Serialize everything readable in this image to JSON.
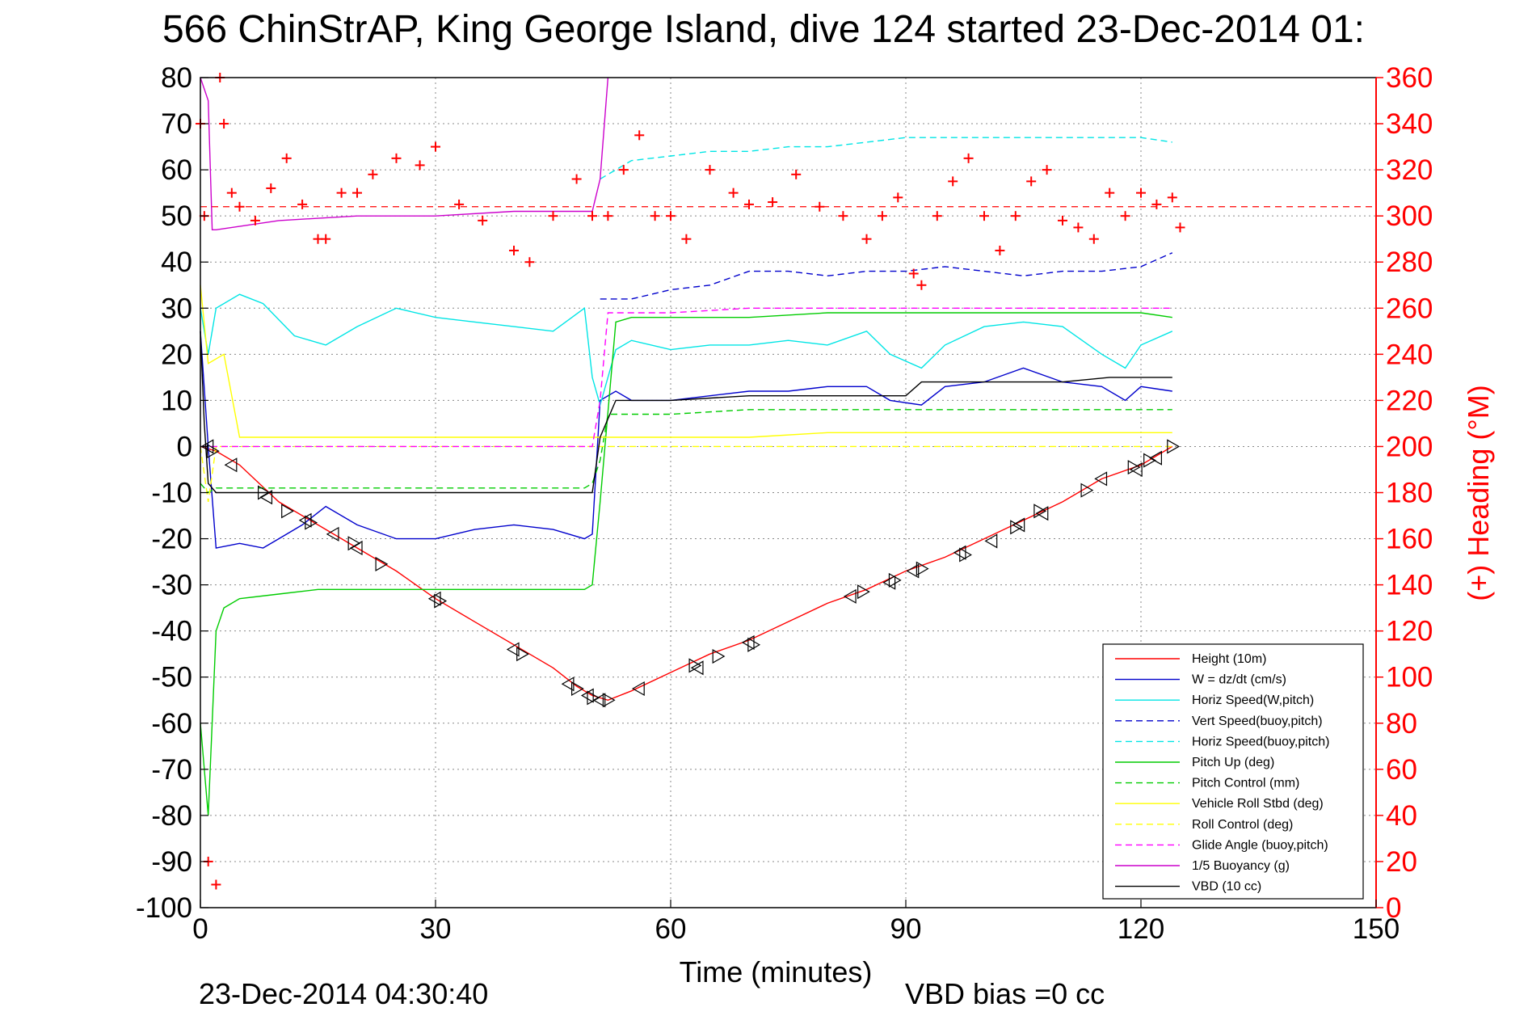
{
  "chart_data": {
    "type": "line",
    "title": "566 ChinStrAP, King George Island, dive 124 started 23-Dec-2014 01:",
    "xlabel": "Time (minutes)",
    "ylabel_right": "(+) Heading (°M)",
    "xlim": [
      0,
      150
    ],
    "ylim": [
      -100,
      80
    ],
    "ylim_right": [
      0,
      360
    ],
    "x_ticks": [
      "0",
      "30",
      "60",
      "90",
      "120",
      "150"
    ],
    "y_ticks": [
      "80",
      "70",
      "60",
      "50",
      "40",
      "30",
      "20",
      "10",
      "0",
      "-10",
      "-20",
      "-30",
      "-40",
      "-50",
      "-60",
      "-70",
      "-80",
      "-90",
      "-100"
    ],
    "y_ticks_right": [
      "360",
      "340",
      "320",
      "300",
      "280",
      "260",
      "240",
      "220",
      "200",
      "180",
      "160",
      "140",
      "120",
      "100",
      "80",
      "60",
      "40",
      "20",
      "0"
    ],
    "grid": true,
    "legend_position": "bottom-right",
    "footer_left": "23-Dec-2014 04:30:40",
    "footer_right": "VBD bias =0 cc",
    "reference_line_heading": 304,
    "series": [
      {
        "name": "Height (10m)",
        "color": "#ff0000",
        "dash": "solid",
        "x": [
          0,
          2,
          5,
          10,
          15,
          20,
          25,
          30,
          35,
          40,
          45,
          48,
          50,
          52,
          55,
          60,
          65,
          70,
          75,
          80,
          85,
          90,
          95,
          100,
          105,
          110,
          115,
          120,
          124
        ],
        "y": [
          0,
          -1,
          -4,
          -12,
          -17,
          -22,
          -27,
          -33,
          -38,
          -43,
          -48,
          -52,
          -54,
          -55,
          -53,
          -49,
          -45,
          -42,
          -38,
          -34,
          -31,
          -27,
          -24,
          -20,
          -16,
          -12,
          -7,
          -4,
          0
        ]
      },
      {
        "name": "W = dz/dt (cm/s)",
        "color": "#0000cc",
        "dash": "solid",
        "x": [
          0,
          1,
          2,
          5,
          8,
          10,
          13,
          16,
          20,
          25,
          30,
          35,
          40,
          45,
          49,
          50,
          51,
          53,
          55,
          60,
          65,
          70,
          75,
          80,
          85,
          88,
          92,
          95,
          100,
          105,
          110,
          115,
          118,
          120,
          124
        ],
        "y": [
          25,
          0,
          -22,
          -21,
          -22,
          -20,
          -17,
          -13,
          -17,
          -20,
          -20,
          -18,
          -17,
          -18,
          -20,
          -19,
          10,
          12,
          10,
          10,
          11,
          12,
          12,
          13,
          13,
          10,
          9,
          13,
          14,
          17,
          14,
          13,
          10,
          13,
          12
        ]
      },
      {
        "name": "Horiz Speed(W,pitch)",
        "color": "#00e5e5",
        "dash": "solid",
        "x": [
          0,
          1,
          2,
          5,
          8,
          12,
          16,
          20,
          25,
          30,
          35,
          40,
          45,
          49,
          50,
          51,
          53,
          55,
          60,
          65,
          70,
          75,
          80,
          85,
          88,
          92,
          95,
          100,
          105,
          110,
          115,
          118,
          120,
          124
        ],
        "y": [
          30,
          20,
          30,
          33,
          31,
          24,
          22,
          26,
          30,
          28,
          27,
          26,
          25,
          30,
          15,
          9,
          21,
          23,
          21,
          22,
          22,
          23,
          22,
          25,
          20,
          17,
          22,
          26,
          27,
          26,
          20,
          17,
          22,
          25
        ]
      },
      {
        "name": "Vert Speed(buoy,pitch)",
        "color": "#0000cc",
        "dash": "dashed",
        "x": [
          51,
          55,
          60,
          65,
          70,
          75,
          80,
          85,
          90,
          95,
          100,
          105,
          110,
          115,
          120,
          124
        ],
        "y": [
          32,
          32,
          34,
          35,
          38,
          38,
          37,
          38,
          38,
          39,
          38,
          37,
          38,
          38,
          39,
          42
        ]
      },
      {
        "name": "Horiz Speed(buoy,pitch)",
        "color": "#00e5e5",
        "dash": "dashed",
        "x": [
          51,
          55,
          60,
          65,
          70,
          75,
          80,
          85,
          90,
          95,
          100,
          105,
          110,
          115,
          120,
          124
        ],
        "y": [
          58,
          62,
          63,
          64,
          64,
          65,
          65,
          66,
          67,
          67,
          67,
          67,
          67,
          67,
          67,
          66
        ]
      },
      {
        "name": "Pitch Up (deg)",
        "color": "#00cc00",
        "dash": "solid",
        "x": [
          0,
          1,
          2,
          3,
          5,
          10,
          15,
          20,
          25,
          30,
          35,
          40,
          45,
          49,
          50,
          51,
          53,
          55,
          60,
          70,
          80,
          90,
          100,
          110,
          120,
          124
        ],
        "y": [
          -60,
          -80,
          -40,
          -35,
          -33,
          -32,
          -31,
          -31,
          -31,
          -31,
          -31,
          -31,
          -31,
          -31,
          -30,
          -12,
          27,
          28,
          28,
          28,
          29,
          29,
          29,
          29,
          29,
          28
        ]
      },
      {
        "name": "Pitch Control (mm)",
        "color": "#00cc00",
        "dash": "dashed",
        "x": [
          0,
          1,
          2,
          5,
          10,
          20,
          30,
          40,
          49,
          50,
          51,
          52,
          55,
          60,
          70,
          80,
          90,
          100,
          110,
          120,
          124
        ],
        "y": [
          -8,
          -10,
          -9,
          -9,
          -9,
          -9,
          -9,
          -9,
          -9,
          -8,
          -3,
          7,
          7,
          7,
          8,
          8,
          8,
          8,
          8,
          8,
          8
        ]
      },
      {
        "name": "Vehicle Roll Stbd (deg)",
        "color": "#ffff00",
        "dash": "solid",
        "x": [
          0,
          1,
          3,
          5,
          10,
          20,
          30,
          40,
          50,
          52,
          60,
          70,
          80,
          90,
          100,
          110,
          120,
          124
        ],
        "y": [
          35,
          18,
          20,
          2,
          2,
          2,
          2,
          2,
          2,
          2,
          2,
          2,
          3,
          3,
          3,
          3,
          3,
          3
        ]
      },
      {
        "name": "Roll Control (deg)",
        "color": "#ffff00",
        "dash": "dashed",
        "x": [
          0,
          1,
          2,
          5,
          10,
          20,
          30,
          40,
          50,
          52,
          60,
          70,
          80,
          90,
          100,
          110,
          120,
          124
        ],
        "y": [
          0,
          -12,
          0,
          0,
          0,
          0,
          0,
          0,
          0,
          0,
          0,
          0,
          0,
          0,
          0,
          0,
          0,
          0
        ]
      },
      {
        "name": "Glide Angle (buoy,pitch)",
        "color": "#ff00ff",
        "dash": "dashed",
        "x": [
          0,
          10,
          20,
          30,
          40,
          50,
          51,
          52,
          55,
          60,
          70,
          80,
          90,
          100,
          110,
          120,
          124
        ],
        "y": [
          0,
          0,
          0,
          0,
          0,
          0,
          10,
          29,
          29,
          29,
          30,
          30,
          30,
          30,
          30,
          30,
          30
        ]
      },
      {
        "name": "1/5 Buoyancy (g)",
        "color": "#cc00cc",
        "dash": "solid",
        "x": [
          0,
          1,
          1.5,
          2,
          10,
          20,
          30,
          40,
          50,
          51,
          52
        ],
        "y": [
          80,
          75,
          47,
          47,
          49,
          50,
          50,
          51,
          51,
          58,
          80
        ]
      },
      {
        "name": "VBD (10 cc)",
        "color": "#000000",
        "dash": "solid",
        "x": [
          0,
          0.5,
          1,
          2,
          10,
          20,
          30,
          40,
          50,
          51,
          53,
          55,
          60,
          70,
          80,
          90,
          92,
          100,
          110,
          116,
          120,
          124
        ],
        "y": [
          25,
          5,
          -8,
          -10,
          -10,
          -10,
          -10,
          -10,
          -10,
          2,
          10,
          10,
          10,
          11,
          11,
          11,
          14,
          14,
          14,
          15,
          15,
          15
        ]
      },
      {
        "name": "(+) Heading",
        "color": "#ff0000",
        "dash": "markers",
        "axis": "right",
        "x": [
          0,
          0.5,
          1,
          2,
          2.5,
          3,
          4,
          5,
          7,
          9,
          11,
          13,
          15,
          16,
          18,
          20,
          22,
          25,
          28,
          30,
          33,
          36,
          40,
          42,
          45,
          48,
          50,
          52,
          54,
          56,
          58,
          60,
          62,
          65,
          68,
          70,
          73,
          76,
          79,
          82,
          85,
          87,
          89,
          91,
          92,
          94,
          96,
          98,
          100,
          102,
          104,
          106,
          108,
          110,
          112,
          114,
          116,
          118,
          120,
          122,
          124,
          125
        ],
        "y": [
          340,
          300,
          20,
          10,
          360,
          340,
          310,
          304,
          298,
          312,
          325,
          305,
          290,
          290,
          310,
          310,
          318,
          325,
          322,
          330,
          305,
          298,
          285,
          280,
          300,
          316,
          300,
          300,
          320,
          335,
          300,
          300,
          290,
          320,
          310,
          305,
          306,
          318,
          304,
          300,
          290,
          300,
          308,
          275,
          270,
          300,
          315,
          325,
          300,
          285,
          300,
          315,
          320,
          298,
          295,
          290,
          310,
          300,
          310,
          305,
          308,
          295
        ]
      }
    ],
    "height_markers": [
      [
        1,
        0
      ],
      [
        1.5,
        -1
      ],
      [
        4,
        -4
      ],
      [
        8,
        -10
      ],
      [
        8.5,
        -11
      ],
      [
        11,
        -14
      ],
      [
        13.5,
        -16
      ],
      [
        14,
        -16.5
      ],
      [
        17,
        -19
      ],
      [
        19.5,
        -21
      ],
      [
        20,
        -22
      ],
      [
        23,
        -25.5
      ],
      [
        30,
        -33
      ],
      [
        30.5,
        -33.5
      ],
      [
        40,
        -44
      ],
      [
        41,
        -45
      ],
      [
        47,
        -51.5
      ],
      [
        48,
        -52.5
      ],
      [
        49.5,
        -54
      ],
      [
        50,
        -54.5
      ],
      [
        51,
        -55
      ],
      [
        52,
        -55
      ],
      [
        56,
        -52.5
      ],
      [
        63,
        -47.5
      ],
      [
        63.5,
        -48
      ],
      [
        66,
        -45.5
      ],
      [
        70,
        -42.5
      ],
      [
        70.5,
        -43
      ],
      [
        83,
        -32.5
      ],
      [
        84.5,
        -31.5
      ],
      [
        88,
        -29.5
      ],
      [
        88.5,
        -29
      ],
      [
        91,
        -27
      ],
      [
        92,
        -26.5
      ],
      [
        97,
        -23
      ],
      [
        97.5,
        -23.5
      ],
      [
        101,
        -20.5
      ],
      [
        104,
        -17.5
      ],
      [
        104.5,
        -17
      ],
      [
        107,
        -14
      ],
      [
        107.5,
        -14.5
      ],
      [
        113,
        -9.5
      ],
      [
        115,
        -7
      ],
      [
        119,
        -4.5
      ],
      [
        119.5,
        -5
      ],
      [
        121,
        -3
      ],
      [
        122,
        -2.5
      ],
      [
        124,
        0
      ]
    ]
  }
}
